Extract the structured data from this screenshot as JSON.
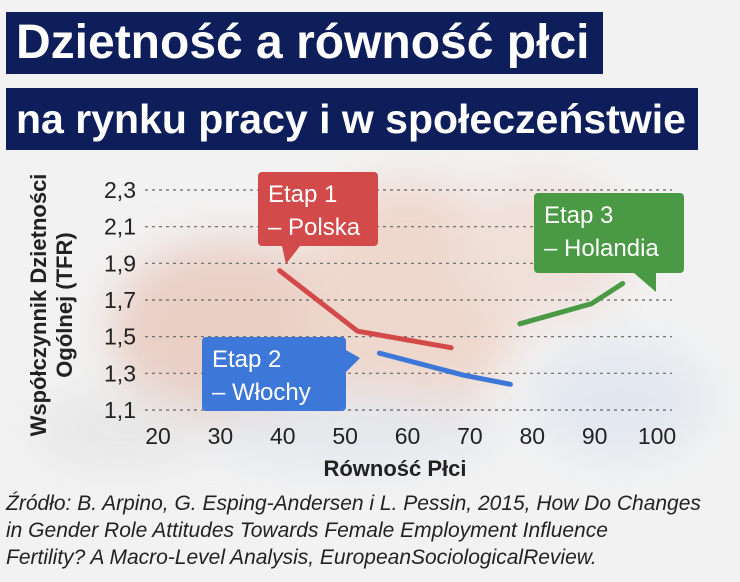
{
  "title": {
    "line1": "Dzietność a równość płci",
    "line2": "na rynku pracy i w społeczeństwie"
  },
  "colors": {
    "title_bg": "#0e1e5a",
    "poland": "#d24a4a",
    "italy": "#3d78d8",
    "netherlands": "#4a9a45"
  },
  "chart_data": {
    "type": "line",
    "xlabel": "Równość Płci",
    "ylabel_lines": [
      "Współczynnik Dzietności",
      "Ogólnej (TFR)"
    ],
    "xlim": [
      20,
      100
    ],
    "ylim": [
      1.1,
      2.3
    ],
    "x_ticks": [
      20,
      30,
      40,
      50,
      60,
      70,
      80,
      90,
      100
    ],
    "y_ticks": [
      "2,3",
      "2,1",
      "1,9",
      "1,7",
      "1,5",
      "1,3",
      "1,1"
    ],
    "y_tick_values": [
      2.3,
      2.1,
      1.9,
      1.7,
      1.5,
      1.3,
      1.1
    ],
    "grid": "horizontal",
    "series": [
      {
        "key": "poland",
        "label_lines": [
          "Etap 1",
          "– Polska"
        ],
        "color": "#d24a4a",
        "x": [
          39.5,
          52,
          67
        ],
        "y": [
          1.86,
          1.53,
          1.44
        ]
      },
      {
        "key": "italy",
        "label_lines": [
          "Etap 2",
          "– Włochy"
        ],
        "color": "#3d78d8",
        "x": [
          55.5,
          69,
          76.5
        ],
        "y": [
          1.41,
          1.29,
          1.24
        ]
      },
      {
        "key": "netherlands",
        "label_lines": [
          "Etap 3",
          "– Holandia"
        ],
        "color": "#4a9a45",
        "x": [
          78,
          89.5,
          94.5
        ],
        "y": [
          1.57,
          1.68,
          1.79
        ]
      }
    ]
  },
  "source": {
    "lines": [
      "Źródło: B. Arpino, G. Esping-Andersen i L. Pessin, 2015, How Do Changes",
      "in Gender Role Attitudes Towards Female Employment Influence",
      "Fertility? A Macro-Level Analysis, EuropeanSociologicalReview."
    ]
  }
}
